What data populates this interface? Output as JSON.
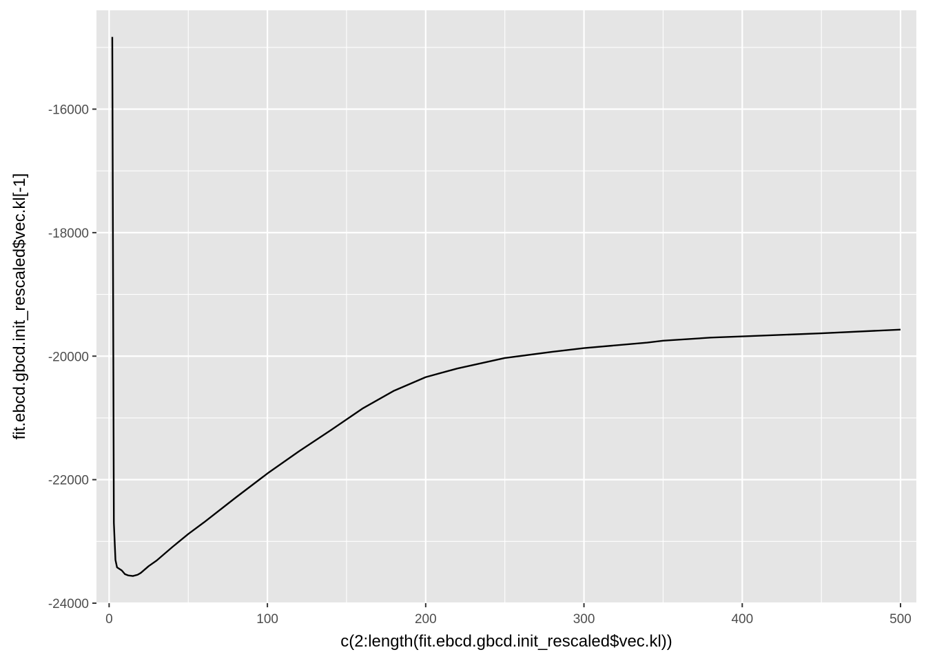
{
  "chart_data": {
    "type": "line",
    "title": "",
    "xlabel": "c(2:length(fit.ebcd.gbcd.init_rescaled$vec.kl))",
    "ylabel": "fit.ebcd.gbcd.init_rescaled$vec.kl[-1]",
    "xlim": [
      -8,
      510
    ],
    "ylim": [
      -24000,
      -14400
    ],
    "x_ticks": [
      0,
      100,
      200,
      300,
      400,
      500
    ],
    "x_tick_labels": [
      "0",
      "100",
      "200",
      "300",
      "400",
      "500"
    ],
    "y_ticks": [
      -24000,
      -22000,
      -20000,
      -18000,
      -16000
    ],
    "y_tick_labels": [
      "-24000",
      "-22000",
      "-20000",
      "-18000",
      "-16000"
    ],
    "grid": true,
    "background": "#e5e5e5",
    "grid_color": "#ffffff",
    "line_color": "#000000",
    "series": [
      {
        "x": [
          2,
          3,
          4,
          5,
          8,
          10,
          12,
          15,
          18,
          20,
          25,
          30,
          40,
          50,
          60,
          80,
          100,
          120,
          140,
          160,
          180,
          200,
          220,
          250,
          280,
          300,
          340,
          350,
          380,
          400,
          450,
          500
        ],
        "y": [
          -14830,
          -22700,
          -23300,
          -23420,
          -23470,
          -23530,
          -23550,
          -23560,
          -23540,
          -23510,
          -23400,
          -23310,
          -23090,
          -22880,
          -22690,
          -22290,
          -21900,
          -21540,
          -21200,
          -20850,
          -20560,
          -20340,
          -20200,
          -20030,
          -19930,
          -19870,
          -19780,
          -19750,
          -19700,
          -19680,
          -19630,
          -19570
        ]
      }
    ]
  }
}
